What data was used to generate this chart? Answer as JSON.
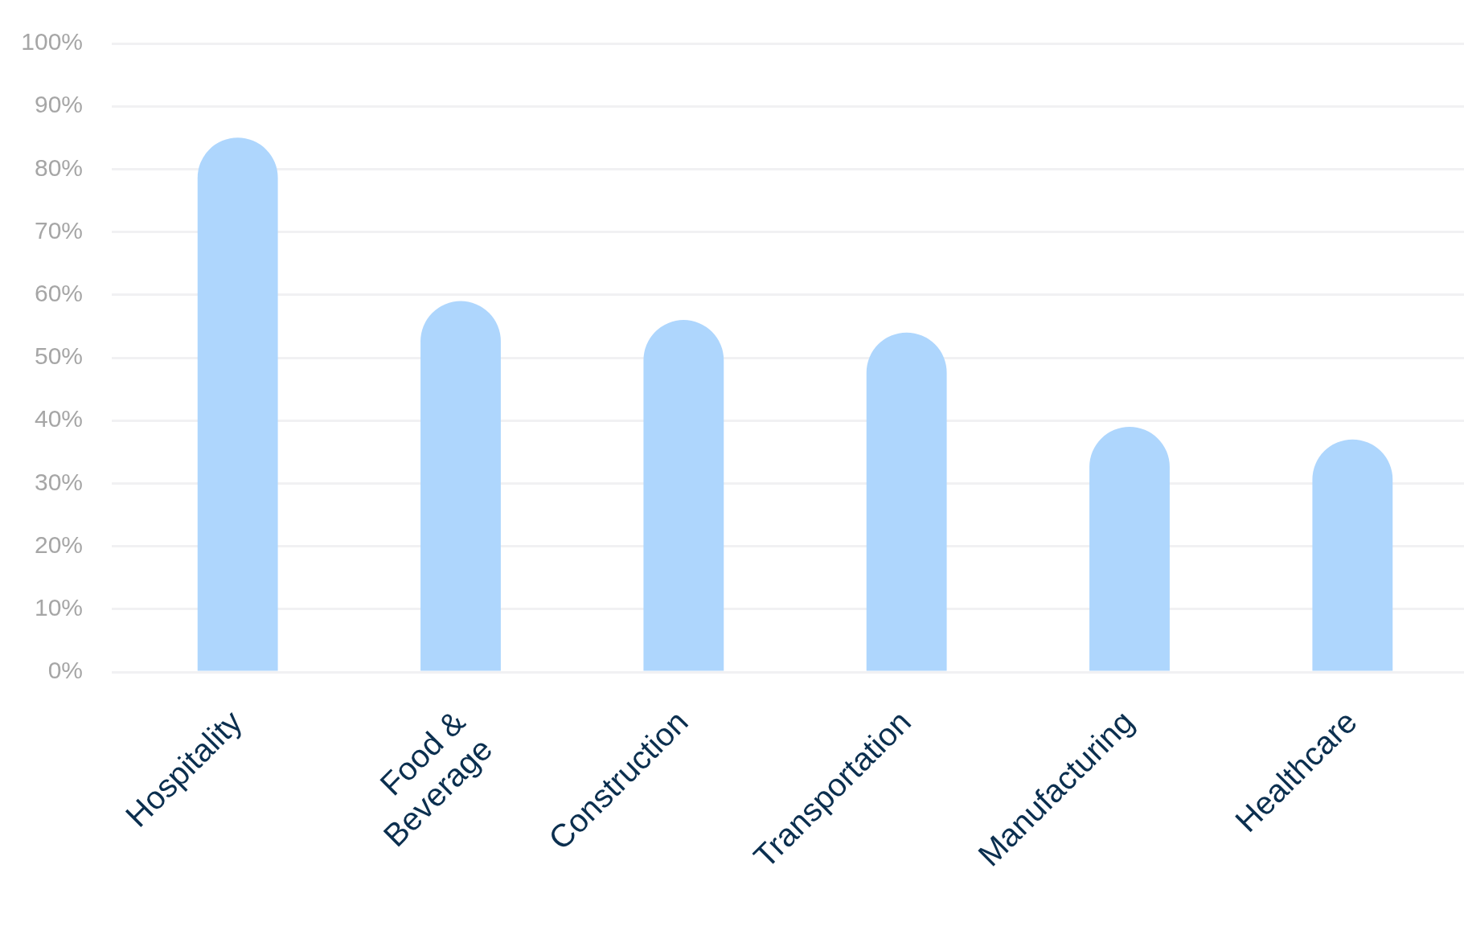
{
  "chart_data": {
    "type": "bar",
    "categories": [
      "Hospitality",
      "Food & Beverage",
      "Construction",
      "Transportation",
      "Manufacturing",
      "Healthcare"
    ],
    "values": [
      85,
      59,
      56,
      54,
      39,
      37
    ],
    "color": "#aed6fd",
    "ylim": [
      0,
      100
    ],
    "yticks": [
      {
        "value": 0,
        "label": "0%"
      },
      {
        "value": 10,
        "label": "10%"
      },
      {
        "value": 20,
        "label": "20%"
      },
      {
        "value": 30,
        "label": "30%"
      },
      {
        "value": 40,
        "label": "40%"
      },
      {
        "value": 50,
        "label": "50%"
      },
      {
        "value": 60,
        "label": "60%"
      },
      {
        "value": 70,
        "label": "70%"
      },
      {
        "value": 80,
        "label": "80%"
      },
      {
        "value": 90,
        "label": "90%"
      },
      {
        "value": 100,
        "label": "100%"
      }
    ],
    "grid": "y"
  }
}
